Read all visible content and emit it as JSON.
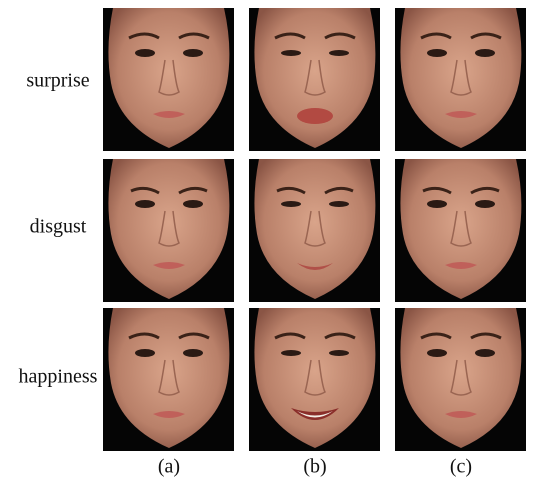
{
  "figure": {
    "row_labels": [
      "surprise",
      "disgust",
      "happiness"
    ],
    "column_labels": [
      "(a)",
      "(b)",
      "(c)"
    ]
  }
}
